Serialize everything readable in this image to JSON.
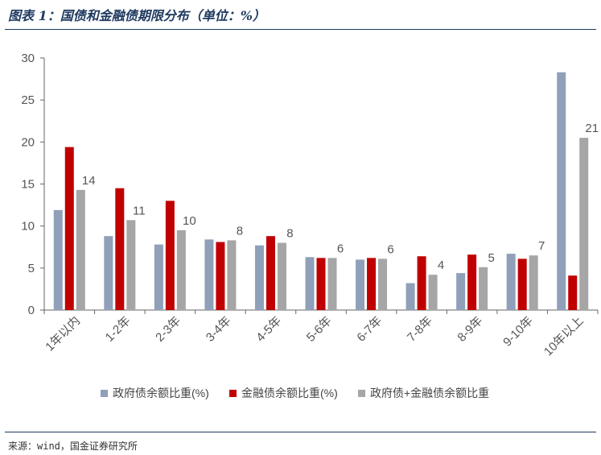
{
  "title": "图表 1：国债和金融债期限分布（单位：%）",
  "source": "来源：wind，国金证券研究所",
  "chart_data": {
    "type": "bar",
    "categories": [
      "1年以内",
      "1-2年",
      "2-3年",
      "3-4年",
      "4-5年",
      "5-6年",
      "6-7年",
      "7-8年",
      "8-9年",
      "9-10年",
      "10年以上"
    ],
    "series": [
      {
        "name": "政府债余额比重(%)",
        "color": "#8fa0b8",
        "values": [
          11.9,
          8.8,
          7.8,
          8.4,
          7.7,
          6.3,
          6.0,
          3.2,
          4.4,
          6.7,
          28.3
        ]
      },
      {
        "name": "金融债余额比重(%)",
        "color": "#c00000",
        "values": [
          19.4,
          14.5,
          13.0,
          8.1,
          8.8,
          6.2,
          6.2,
          6.4,
          6.6,
          6.1,
          4.1
        ]
      },
      {
        "name": "政府债+金融债余额比重",
        "color": "#a6a6a6",
        "values": [
          14.3,
          10.7,
          9.5,
          8.3,
          8.0,
          6.2,
          6.1,
          4.2,
          5.1,
          6.5,
          20.5
        ]
      }
    ],
    "data_labels": [
      "14",
      "11",
      "10",
      "8",
      "8",
      "6",
      "6",
      "4",
      "5",
      "7",
      "21"
    ],
    "ylim": [
      0,
      30
    ],
    "yticks": [
      0,
      5,
      10,
      15,
      20,
      25,
      30
    ],
    "legend_position": "bottom",
    "grid": false
  }
}
